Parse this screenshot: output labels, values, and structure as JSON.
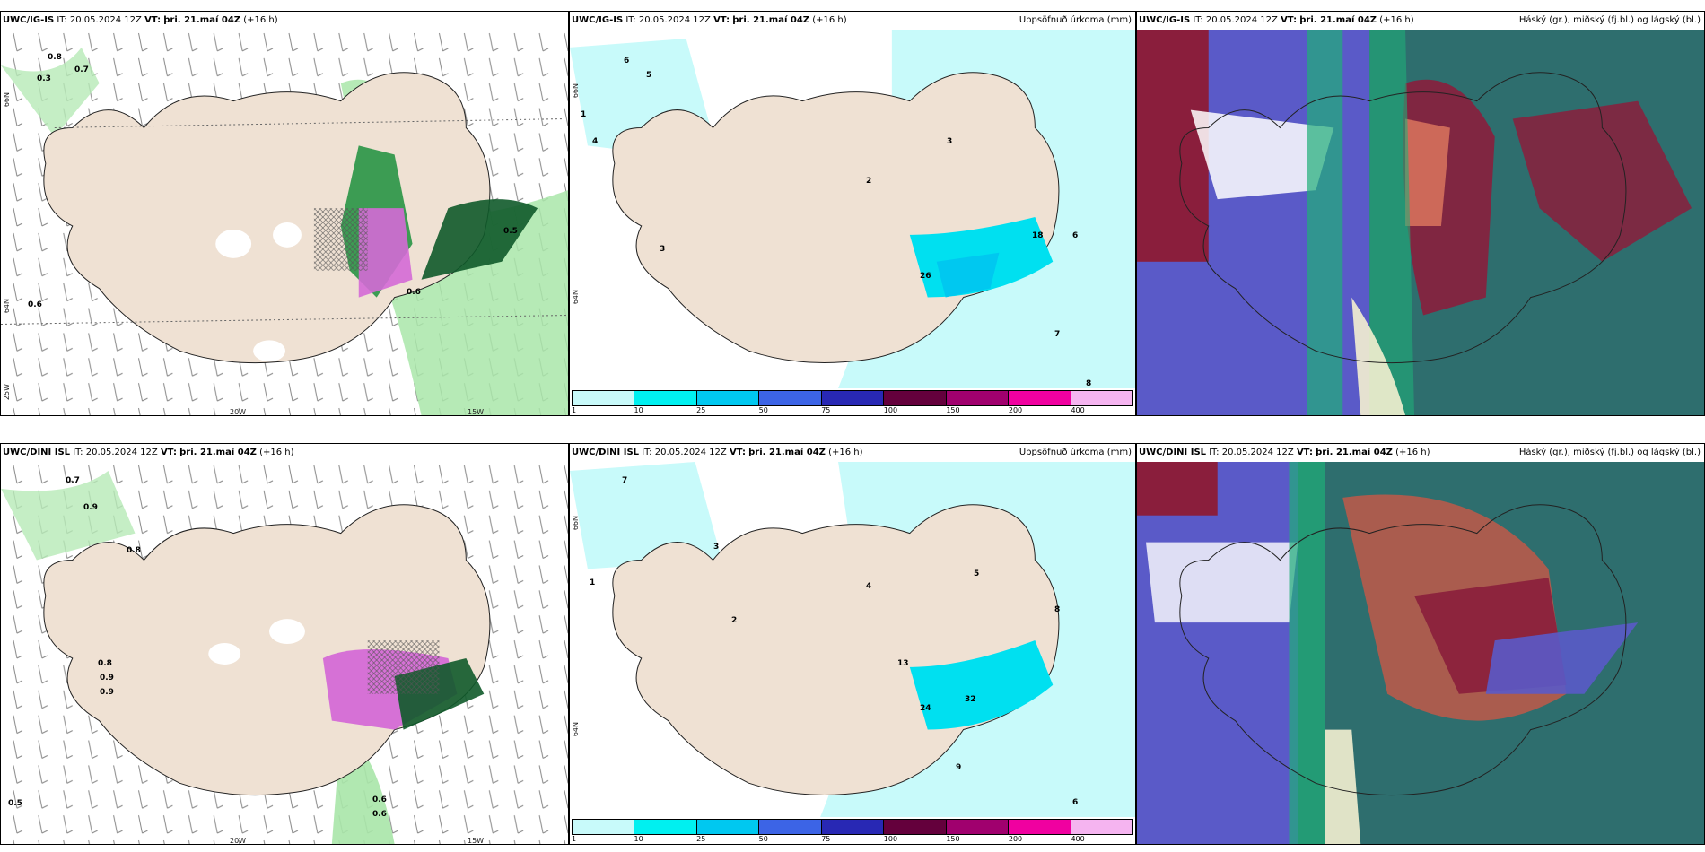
{
  "panels": [
    {
      "model": "UWC/IG-IS",
      "it_label": "IT:",
      "it_value": "20.05.2024 12Z",
      "vt_label": "VT:",
      "vt_value": "þri. 21.maí 04Z",
      "lead": "(+16 h)",
      "right_title": "",
      "lon_labels": [
        "20W",
        "15W"
      ],
      "lat_labels": [
        "66N",
        "64N",
        "25W"
      ],
      "values": [
        "0.8",
        "0.7",
        "0.3",
        "0.6",
        "0.5",
        "0.6"
      ]
    },
    {
      "model": "UWC/IG-IS",
      "it_label": "IT:",
      "it_value": "20.05.2024 12Z",
      "vt_label": "VT:",
      "vt_value": "þri. 21.maí 04Z",
      "lead": "(+16 h)",
      "right_title": "Uppsöfnuð úrkoma (mm)",
      "lat_labels": [
        "66N",
        "64N"
      ],
      "values": [
        "6",
        "5",
        "4",
        "1",
        "2",
        "3",
        "3",
        "26",
        "18",
        "7",
        "6",
        "8"
      ]
    },
    {
      "model": "UWC/IG-IS",
      "it_label": "IT:",
      "it_value": "20.05.2024 12Z",
      "vt_label": "VT:",
      "vt_value": "þri. 21.maí 04Z",
      "lead": "(+16 h)",
      "right_title": "Háský (gr.), miðský (fj.bl.) og lágský (bl.)"
    },
    {
      "model": "UWC/DINI ISL",
      "it_label": "IT:",
      "it_value": "20.05.2024 12Z",
      "vt_label": "VT:",
      "vt_value": "þri. 21.maí 04Z",
      "lead": "(+16 h)",
      "right_title": "",
      "lon_labels": [
        "20W",
        "15W"
      ],
      "values": [
        "0.7",
        "0.9",
        "0.8",
        "0.8",
        "0.9",
        "0.9",
        "0.6",
        "0.6",
        "0.5"
      ]
    },
    {
      "model": "UWC/DINI ISL",
      "it_label": "IT:",
      "it_value": "20.05.2024 12Z",
      "vt_label": "VT:",
      "vt_value": "þri. 21.maí 04Z",
      "lead": "(+16 h)",
      "right_title": "Uppsöfnuð úrkoma (mm)",
      "lat_labels": [
        "66N",
        "64N"
      ],
      "values": [
        "7",
        "1",
        "2",
        "3",
        "4",
        "5",
        "8",
        "13",
        "24",
        "32",
        "9",
        "6"
      ]
    },
    {
      "model": "UWC/DINI ISL",
      "it_label": "IT:",
      "it_value": "20.05.2024 12Z",
      "vt_label": "VT:",
      "vt_value": "þri. 21.maí 04Z",
      "lead": "(+16 h)",
      "right_title": "Háský (gr.), miðský (fj.bl.) og lágský (bl.)"
    }
  ],
  "colorbar": {
    "ticks": [
      "1",
      "10",
      "25",
      "50",
      "75",
      "100",
      "150",
      "200",
      "400"
    ],
    "colors": [
      "#c8fafa",
      "#00f0f0",
      "#00c8f0",
      "#3c64e6",
      "#2828b4",
      "#64003c",
      "#a0006e",
      "#f000a0",
      "#f5b4f0"
    ]
  },
  "colors": {
    "land": "#efe1d3",
    "precip_light": "#c8fafa",
    "high_cloud_green": "#1fae78",
    "mid_cloud_red": "#8a1e3c",
    "low_cloud_blue": "#5a5ac8"
  }
}
